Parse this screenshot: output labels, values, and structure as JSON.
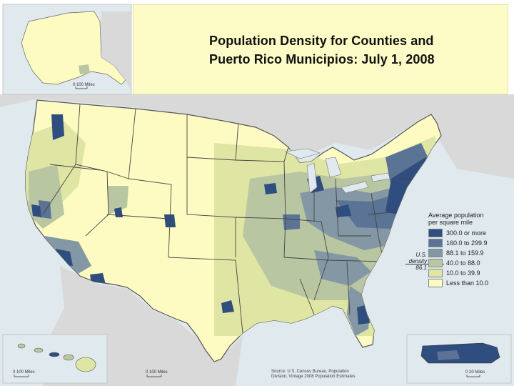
{
  "title": {
    "line1": "Population Density for Counties and",
    "line2": "Puerto Rico Municipios: July 1, 2008"
  },
  "legend": {
    "title_line1": "Average population",
    "title_line2": "per square mile",
    "items": [
      {
        "label": "300.0 or more",
        "color": "#2f4d7e"
      },
      {
        "label": "160.0 to 299.9",
        "color": "#5b7394"
      },
      {
        "label": "88.1 to 159.9",
        "color": "#8497a4"
      },
      {
        "label": "40.0 to 88.0",
        "color": "#b9c6a2"
      },
      {
        "label": "10.0 to 39.9",
        "color": "#dfe6a3"
      },
      {
        "label": "Less than 10.0",
        "color": "#fdfbc2"
      }
    ]
  },
  "us_density": {
    "line1": "U.S.",
    "line2": "density",
    "line3": "86.1"
  },
  "insets": {
    "alaska_scale": "0   100 Miles",
    "hawaii_scale": "0     100 Miles",
    "mainland_scale": "0     100 Miles",
    "puerto_rico_scale": "0     20 Miles"
  },
  "source": {
    "line1": "Source: U.S. Census Bureau, Population",
    "line2": "Division, Vintage 2008 Population Estimates"
  },
  "colors": {
    "water": "#dfe9ee",
    "neighbor_land": "#d9d9d9",
    "title_background": "#fdfcc6"
  }
}
